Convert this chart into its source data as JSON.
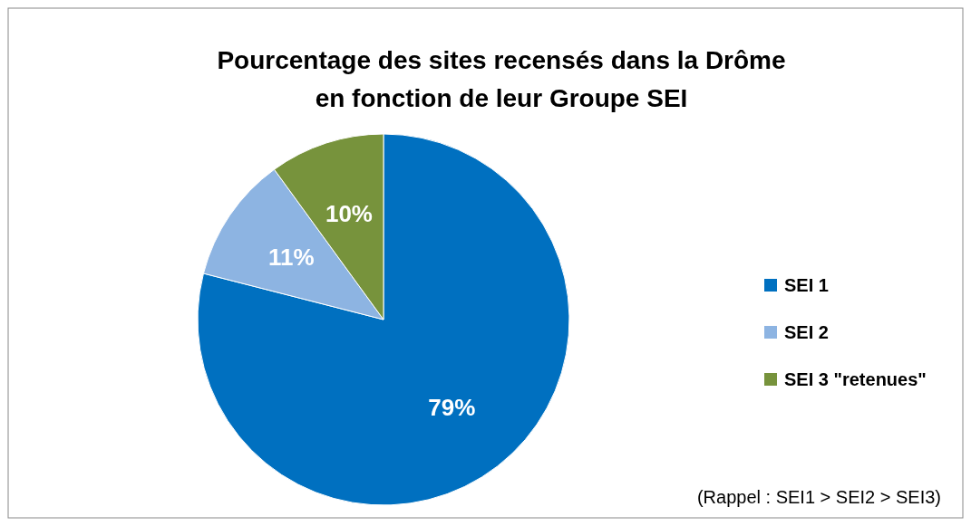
{
  "chart_data": {
    "type": "pie",
    "title": "Pourcentage des sites recensés dans la Drôme en fonction de leur Groupe SEI",
    "categories": [
      "SEI 1",
      "SEI 2",
      "SEI 3 \"retenues\""
    ],
    "values": [
      79,
      11,
      10
    ],
    "value_labels": [
      "79%",
      "11%",
      "10%"
    ],
    "colors": [
      "#0070c0",
      "#8db4e2",
      "#77933c"
    ],
    "legend": "right",
    "annotations": [
      "(Rappel : SEI1 > SEI2 > SEI3)"
    ]
  }
}
